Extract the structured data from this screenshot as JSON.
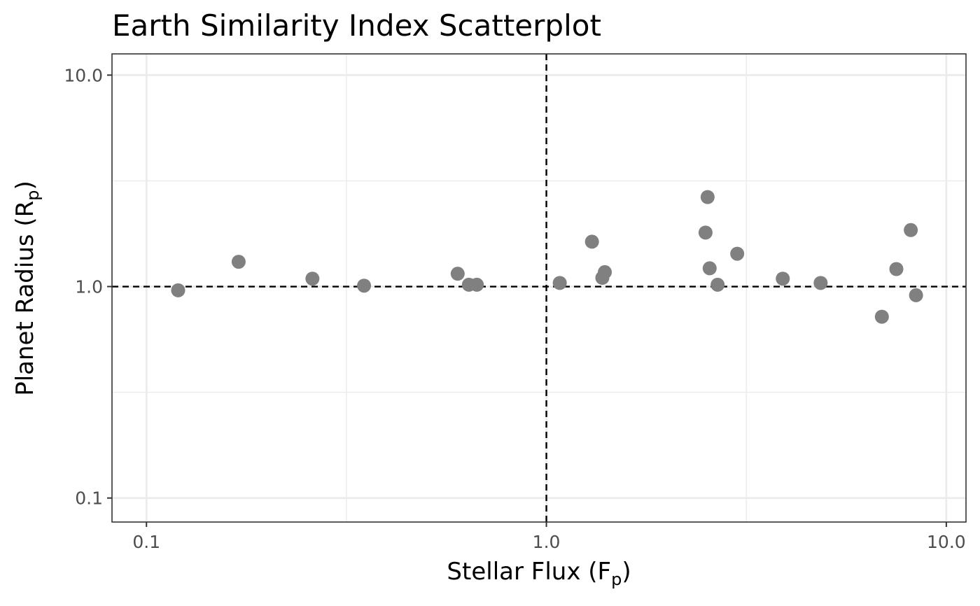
{
  "chart_data": {
    "type": "scatter",
    "title": "Earth Similarity Index Scatterplot",
    "xlabel": {
      "main": "Stellar Flux (F",
      "sub": "p",
      "end": ")"
    },
    "ylabel": {
      "main": "Planet Radius (R",
      "sub": "p",
      "end": ")"
    },
    "x_scale": "log10",
    "y_scale": "log10",
    "xlim": [
      0.082,
      11.2
    ],
    "ylim": [
      0.077,
      12.6
    ],
    "x_ticks": [
      {
        "value": 0.1,
        "label": "0.1"
      },
      {
        "value": 1,
        "label": "1.0"
      },
      {
        "value": 10,
        "label": "10.0"
      }
    ],
    "y_ticks": [
      {
        "value": 0.1,
        "label": "0.1"
      },
      {
        "value": 1,
        "label": "1.0"
      },
      {
        "value": 10,
        "label": "10.0"
      }
    ],
    "reference_lines": {
      "x": 1,
      "y": 1,
      "style": "dashed"
    },
    "point_color": "#808080",
    "grid": true,
    "points": [
      {
        "x": 0.12,
        "y": 0.96
      },
      {
        "x": 0.17,
        "y": 1.31
      },
      {
        "x": 0.26,
        "y": 1.09
      },
      {
        "x": 0.35,
        "y": 1.01
      },
      {
        "x": 0.6,
        "y": 1.15
      },
      {
        "x": 0.64,
        "y": 1.02
      },
      {
        "x": 0.67,
        "y": 1.02
      },
      {
        "x": 1.08,
        "y": 1.04
      },
      {
        "x": 1.3,
        "y": 1.63
      },
      {
        "x": 1.38,
        "y": 1.1
      },
      {
        "x": 1.4,
        "y": 1.17
      },
      {
        "x": 2.5,
        "y": 1.8
      },
      {
        "x": 2.53,
        "y": 2.65
      },
      {
        "x": 2.56,
        "y": 1.22
      },
      {
        "x": 2.68,
        "y": 1.02
      },
      {
        "x": 3.0,
        "y": 1.43
      },
      {
        "x": 3.9,
        "y": 1.09
      },
      {
        "x": 4.85,
        "y": 1.04
      },
      {
        "x": 6.9,
        "y": 0.72
      },
      {
        "x": 7.5,
        "y": 1.21
      },
      {
        "x": 8.15,
        "y": 1.85
      },
      {
        "x": 8.4,
        "y": 0.91
      }
    ]
  }
}
